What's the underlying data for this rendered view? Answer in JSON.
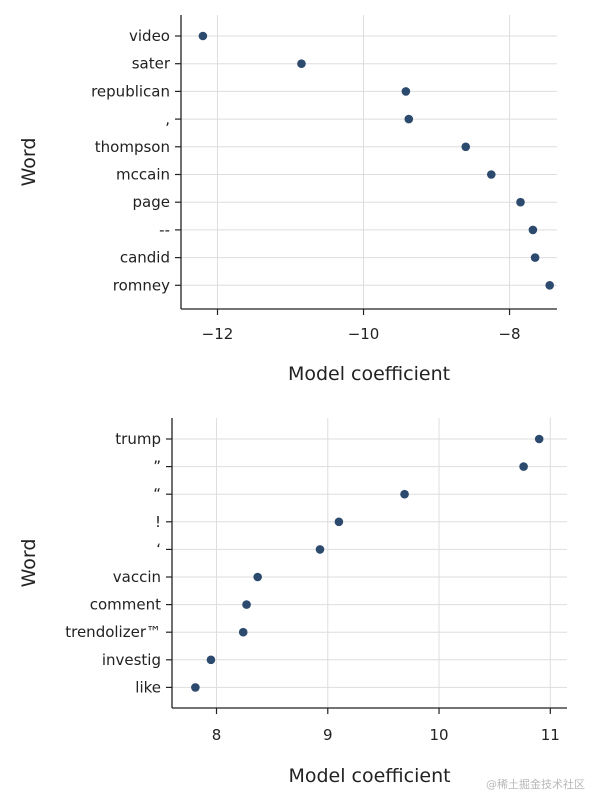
{
  "chart_data": [
    {
      "type": "scatter",
      "title": "",
      "xlabel": "Model coefficient",
      "ylabel": "Word",
      "xlim": [
        -12.5,
        -7.35
      ],
      "xticks": [
        -12,
        -10,
        -8
      ],
      "xtick_labels": [
        "−12",
        "−10",
        "−8"
      ],
      "grid": true,
      "legend": "none",
      "color": "#2c4a6e",
      "categories": [
        "video",
        "sater",
        "republican",
        ",",
        "thompson",
        "mccain",
        "page",
        "--",
        "candid",
        "romney"
      ],
      "values": [
        -12.2,
        -10.85,
        -9.42,
        -9.38,
        -8.6,
        -8.25,
        -7.85,
        -7.68,
        -7.65,
        -7.45
      ]
    },
    {
      "type": "scatter",
      "title": "",
      "xlabel": "Model coefficient",
      "ylabel": "Word",
      "xlim": [
        7.6,
        11.15
      ],
      "xticks": [
        8,
        9,
        10,
        11
      ],
      "xtick_labels": [
        "8",
        "9",
        "10",
        "11"
      ],
      "grid": true,
      "legend": "none",
      "color": "#2c4a6e",
      "categories": [
        "trump",
        "”",
        "“",
        "!",
        "‘",
        "vaccin",
        "comment",
        "trendolizer™",
        "investig",
        "like"
      ],
      "values": [
        10.9,
        10.76,
        9.69,
        9.1,
        8.93,
        8.37,
        8.27,
        8.24,
        7.95,
        7.81
      ]
    }
  ],
  "watermark": "@稀土掘金技术社区"
}
